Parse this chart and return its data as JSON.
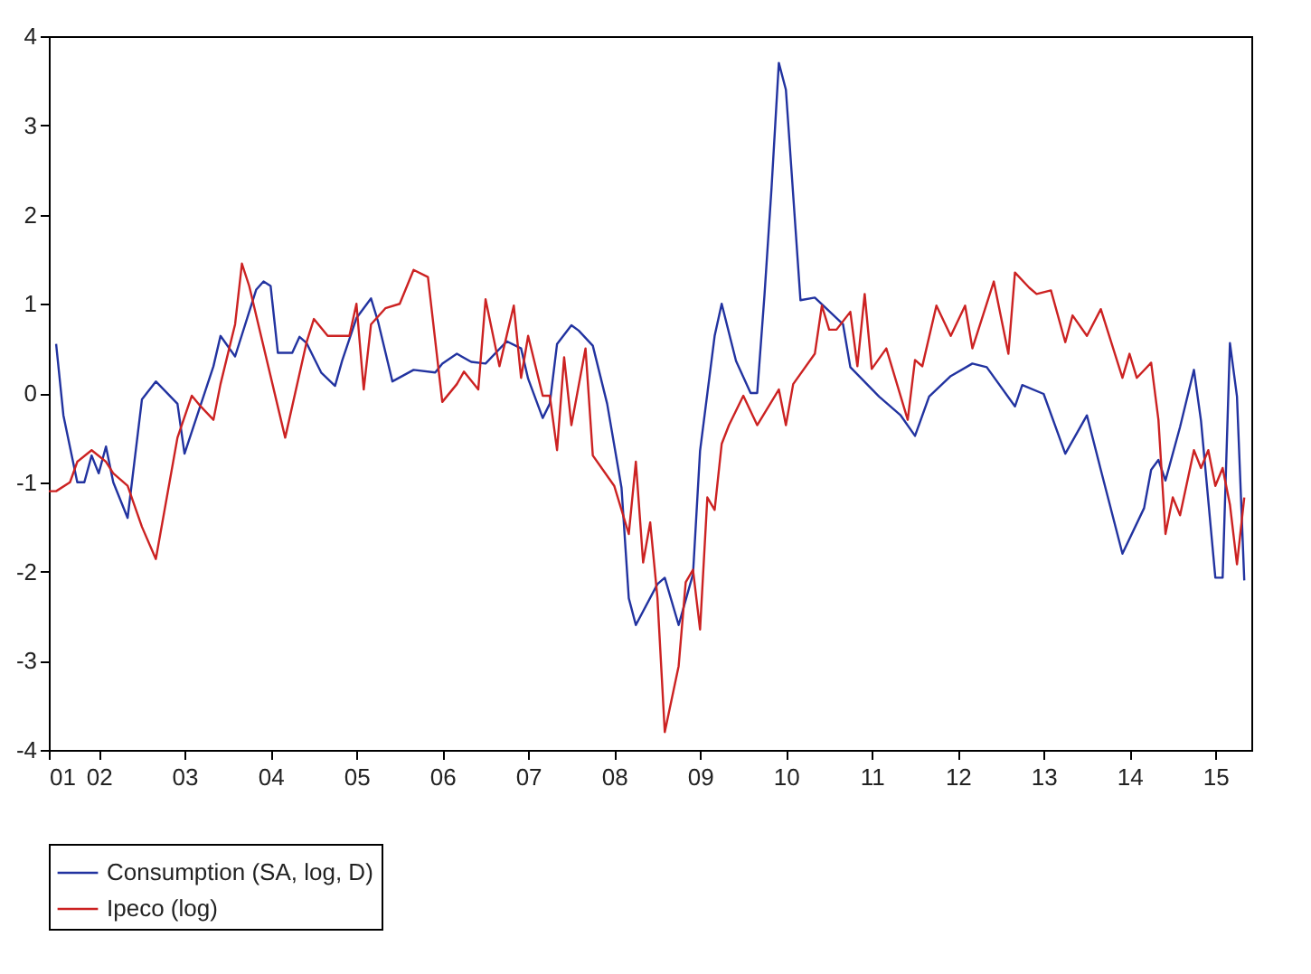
{
  "chart_data": {
    "type": "line",
    "xlim": [
      "2001-12",
      "2015-12"
    ],
    "xticks": [
      {
        "value": "2001-12",
        "label": "01"
      },
      {
        "value": "2002-07",
        "label": "02"
      },
      {
        "value": "2003-07",
        "label": "03"
      },
      {
        "value": "2004-07",
        "label": "04"
      },
      {
        "value": "2005-07",
        "label": "05"
      },
      {
        "value": "2006-07",
        "label": "06"
      },
      {
        "value": "2007-07",
        "label": "07"
      },
      {
        "value": "2008-07",
        "label": "08"
      },
      {
        "value": "2009-07",
        "label": "09"
      },
      {
        "value": "2010-07",
        "label": "10"
      },
      {
        "value": "2011-07",
        "label": "11"
      },
      {
        "value": "2012-07",
        "label": "12"
      },
      {
        "value": "2013-07",
        "label": "13"
      },
      {
        "value": "2014-07",
        "label": "14"
      },
      {
        "value": "2015-07",
        "label": "15"
      }
    ],
    "ylim": [
      -4,
      4
    ],
    "yticks": [
      -4,
      -3,
      -2,
      -1,
      0,
      1,
      2,
      3,
      4
    ],
    "grid": false,
    "legend": "bottom",
    "series": [
      {
        "name": "Consumption (SA, log, D)",
        "color": "#2233a0",
        "x": [
          "2002-01",
          "2002-02",
          "2002-04",
          "2002-05",
          "2002-06",
          "2002-07",
          "2002-08",
          "2002-09",
          "2002-11",
          "2003-01",
          "2003-03",
          "2003-06",
          "2003-07",
          "2003-11",
          "2003-12",
          "2004-02",
          "2004-05",
          "2004-06",
          "2004-07",
          "2004-08",
          "2004-10",
          "2004-11",
          "2004-12",
          "2005-02",
          "2005-04",
          "2005-05",
          "2005-07",
          "2005-09",
          "2005-10",
          "2005-12",
          "2006-03",
          "2006-06",
          "2006-07",
          "2006-09",
          "2006-11",
          "2007-01",
          "2007-04",
          "2007-06",
          "2007-07",
          "2007-09",
          "2007-10",
          "2007-11",
          "2008-01",
          "2008-02",
          "2008-04",
          "2008-06",
          "2008-08",
          "2008-09",
          "2008-10",
          "2009-01",
          "2009-02",
          "2009-04",
          "2009-06",
          "2009-07",
          "2009-09",
          "2009-10",
          "2009-12",
          "2010-02",
          "2010-03",
          "2010-04",
          "2010-05",
          "2010-06",
          "2010-07",
          "2010-09",
          "2010-11",
          "2011-03",
          "2011-04",
          "2011-08",
          "2011-11",
          "2012-01",
          "2012-03",
          "2012-06",
          "2012-09",
          "2012-11",
          "2013-03",
          "2013-04",
          "2013-07",
          "2013-10",
          "2014-01",
          "2014-03",
          "2014-06",
          "2014-09",
          "2014-10",
          "2014-11",
          "2014-12",
          "2015-02",
          "2015-04",
          "2015-05",
          "2015-07",
          "2015-08",
          "2015-09",
          "2015-10",
          "2015-11"
        ],
        "values": [
          0.55,
          -0.25,
          -1.0,
          -1.0,
          -0.7,
          -0.9,
          -0.6,
          -1.0,
          -1.4,
          -0.07,
          0.13,
          -0.12,
          -0.68,
          0.3,
          0.64,
          0.41,
          1.16,
          1.25,
          1.2,
          0.45,
          0.45,
          0.63,
          0.56,
          0.23,
          0.08,
          0.36,
          0.84,
          1.06,
          0.8,
          0.13,
          0.26,
          0.23,
          0.33,
          0.44,
          0.35,
          0.33,
          0.58,
          0.5,
          0.16,
          -0.28,
          -0.12,
          0.55,
          0.76,
          0.7,
          0.53,
          -0.12,
          -1.06,
          -2.3,
          -2.6,
          -2.14,
          -2.07,
          -2.6,
          -2.03,
          -0.65,
          0.64,
          1.0,
          0.36,
          0.0,
          0.0,
          1.1,
          2.3,
          3.7,
          3.4,
          1.04,
          1.07,
          0.77,
          0.29,
          -0.04,
          -0.25,
          -0.48,
          -0.04,
          0.19,
          0.33,
          0.29,
          -0.15,
          0.09,
          -0.01,
          -0.68,
          -0.25,
          -0.86,
          -1.8,
          -1.29,
          -0.86,
          -0.75,
          -0.98,
          -0.38,
          0.26,
          -0.31,
          -2.07,
          -2.07,
          0.56,
          -0.04,
          -2.1
        ]
      },
      {
        "name": "Ipeco (log)",
        "color": "#cc2222",
        "x": [
          "2001-12",
          "2002-01",
          "2002-03",
          "2002-04",
          "2002-06",
          "2002-08",
          "2002-09",
          "2002-11",
          "2003-01",
          "2003-03",
          "2003-06",
          "2003-08",
          "2003-09",
          "2003-11",
          "2003-12",
          "2004-02",
          "2004-03",
          "2004-04",
          "2004-09",
          "2004-12",
          "2005-01",
          "2005-03",
          "2005-06",
          "2005-07",
          "2005-08",
          "2005-09",
          "2005-11",
          "2006-01",
          "2006-03",
          "2006-05",
          "2006-07",
          "2006-09",
          "2006-10",
          "2006-12",
          "2007-01",
          "2007-03",
          "2007-05",
          "2007-06",
          "2007-07",
          "2007-09",
          "2007-10",
          "2007-11",
          "2007-12",
          "2008-01",
          "2008-03",
          "2008-04",
          "2008-07",
          "2008-09",
          "2008-10",
          "2008-11",
          "2008-12",
          "2009-01",
          "2009-02",
          "2009-04",
          "2009-05",
          "2009-06",
          "2009-07",
          "2009-08",
          "2009-09",
          "2009-10",
          "2009-11",
          "2010-01",
          "2010-03",
          "2010-06",
          "2010-07",
          "2010-08",
          "2010-11",
          "2010-12",
          "2011-01",
          "2011-02",
          "2011-04",
          "2011-05",
          "2011-06",
          "2011-07",
          "2011-09",
          "2011-12",
          "2012-01",
          "2012-02",
          "2012-04",
          "2012-06",
          "2012-08",
          "2012-09",
          "2012-12",
          "2013-02",
          "2013-03",
          "2013-05",
          "2013-06",
          "2013-08",
          "2013-10",
          "2013-11",
          "2014-01",
          "2014-03",
          "2014-06",
          "2014-07",
          "2014-08",
          "2014-10",
          "2014-11",
          "2014-12",
          "2015-01",
          "2015-02",
          "2015-04",
          "2015-05",
          "2015-06",
          "2015-07",
          "2015-08",
          "2015-09",
          "2015-10",
          "2015-11"
        ],
        "values": [
          -1.1,
          -1.1,
          -1.0,
          -0.77,
          -0.64,
          -0.77,
          -0.9,
          -1.04,
          -1.5,
          -1.86,
          -0.5,
          -0.03,
          -0.13,
          -0.3,
          0.1,
          0.77,
          1.45,
          1.2,
          -0.5,
          0.57,
          0.83,
          0.64,
          0.64,
          1.0,
          0.04,
          0.77,
          0.95,
          1.0,
          1.38,
          1.3,
          -0.1,
          0.1,
          0.24,
          0.04,
          1.05,
          0.3,
          0.98,
          0.17,
          0.64,
          -0.03,
          -0.03,
          -0.64,
          0.4,
          -0.36,
          0.5,
          -0.7,
          -1.04,
          -1.58,
          -0.77,
          -1.9,
          -1.45,
          -2.3,
          -3.8,
          -3.06,
          -2.12,
          -1.98,
          -2.65,
          -1.17,
          -1.31,
          -0.57,
          -0.36,
          -0.03,
          -0.36,
          0.04,
          -0.36,
          0.1,
          0.44,
          0.98,
          0.71,
          0.71,
          0.91,
          0.3,
          1.11,
          0.27,
          0.5,
          -0.3,
          0.37,
          0.3,
          0.98,
          0.64,
          0.98,
          0.5,
          1.25,
          0.44,
          1.35,
          1.18,
          1.11,
          1.15,
          0.57,
          0.87,
          0.64,
          0.94,
          0.17,
          0.44,
          0.17,
          0.34,
          -0.3,
          -1.58,
          -1.17,
          -1.37,
          -0.64,
          -0.84,
          -0.64,
          -1.04,
          -0.84,
          -1.25,
          -1.92,
          -1.17
        ]
      }
    ]
  }
}
